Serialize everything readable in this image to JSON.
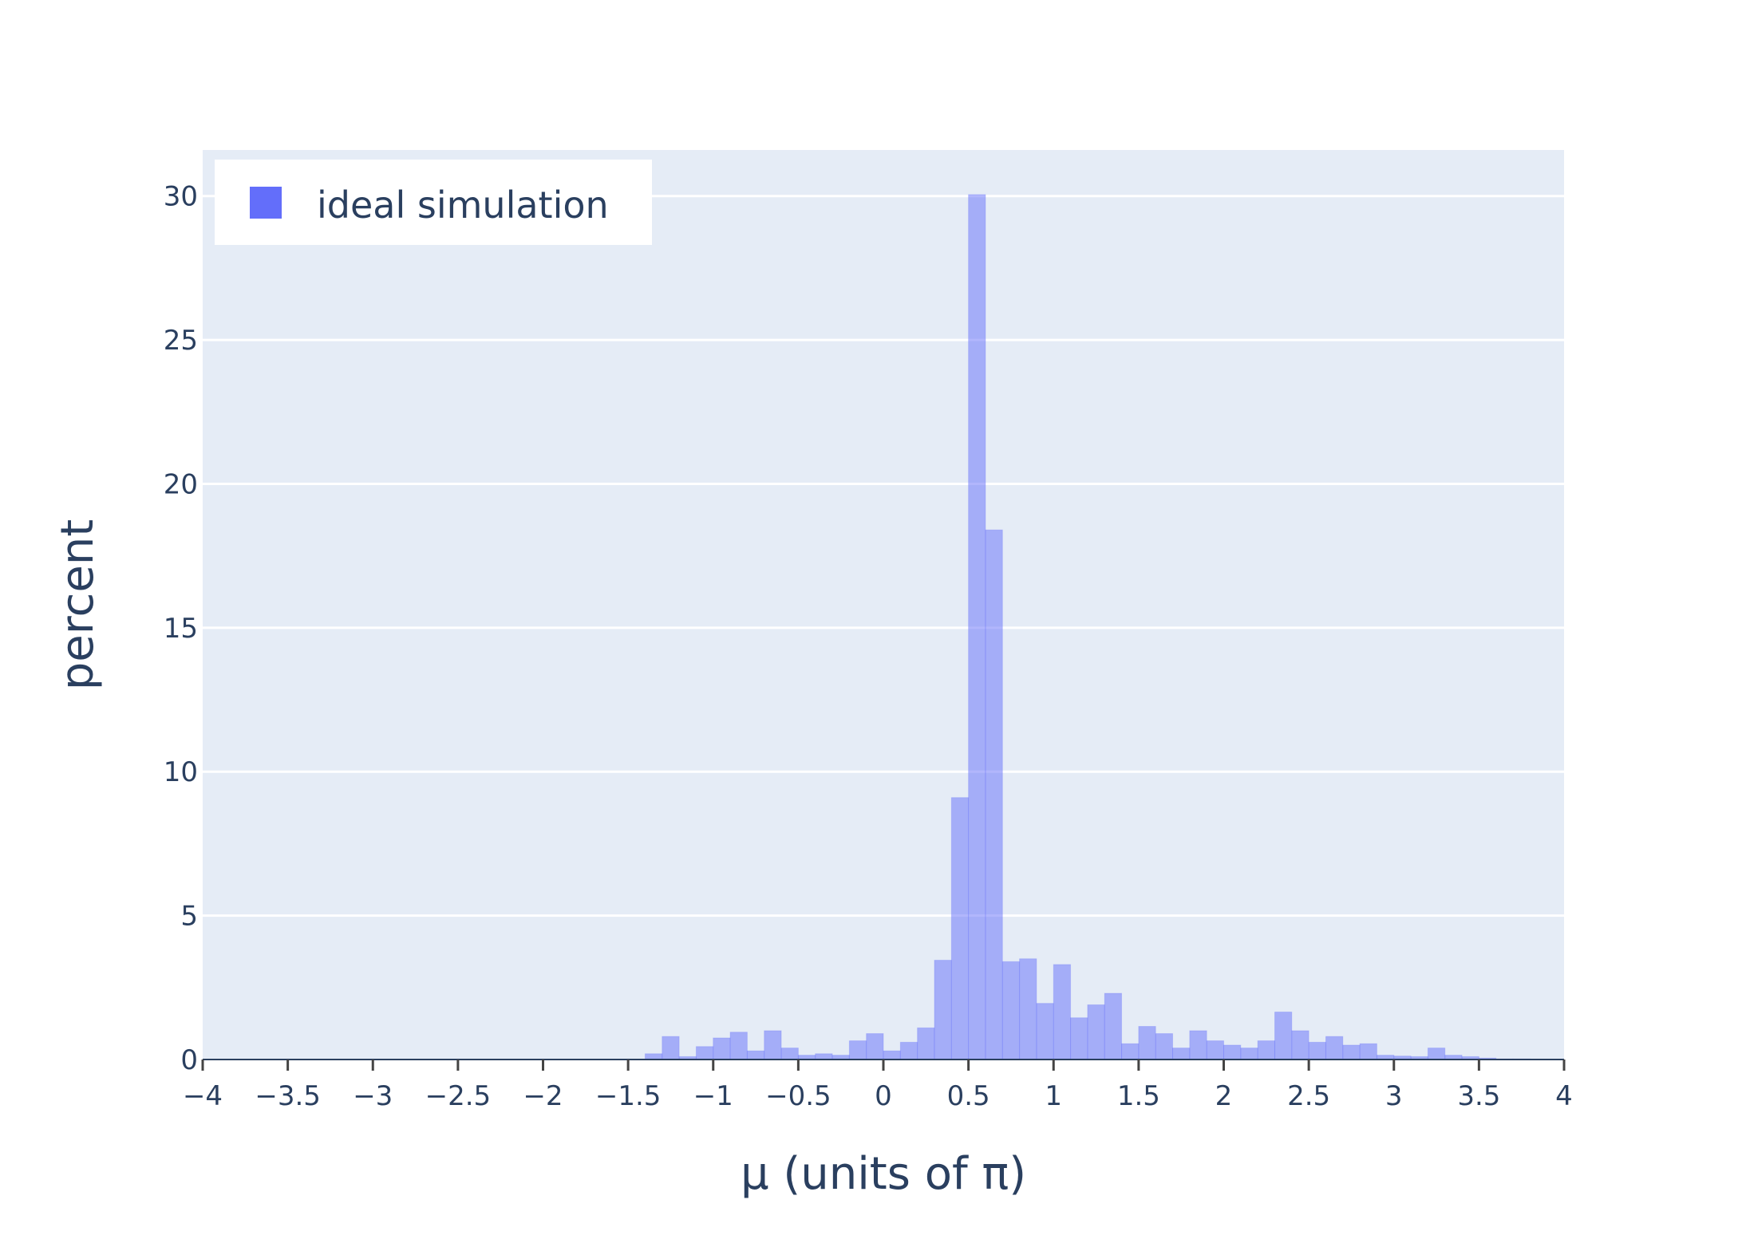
{
  "chart_data": {
    "type": "bar",
    "xlabel": "μ (units of π)",
    "ylabel": "percent",
    "xlim": [
      -4,
      4
    ],
    "ylim": [
      0,
      31.6
    ],
    "x_ticks": [
      -4,
      -3.5,
      -3,
      -2.5,
      -2,
      -1.5,
      -1,
      -0.5,
      0,
      0.5,
      1,
      1.5,
      2,
      2.5,
      3,
      3.5,
      4
    ],
    "x_tick_labels": [
      "−4",
      "−3.5",
      "−3",
      "−2.5",
      "−2",
      "−1.5",
      "−1",
      "−0.5",
      "0",
      "0.5",
      "1",
      "1.5",
      "2",
      "2.5",
      "3",
      "3.5",
      "4"
    ],
    "y_ticks": [
      0,
      5,
      10,
      15,
      20,
      25,
      30
    ],
    "y_tick_labels": [
      "0",
      "5",
      "10",
      "15",
      "20",
      "25",
      "30"
    ],
    "grid": true,
    "legend_position": "top-left",
    "bin_width": 0.1,
    "series": [
      {
        "name": "ideal simulation",
        "color": "#636efa",
        "bin_starts": [
          -1.4,
          -1.3,
          -1.2,
          -1.1,
          -1.0,
          -0.9,
          -0.8,
          -0.7,
          -0.6,
          -0.5,
          -0.4,
          -0.3,
          -0.2,
          -0.1,
          0.0,
          0.1,
          0.2,
          0.3,
          0.4,
          0.5,
          0.6,
          0.7,
          0.8,
          0.9,
          1.0,
          1.1,
          1.2,
          1.3,
          1.4,
          1.5,
          1.6,
          1.7,
          1.8,
          1.9,
          2.0,
          2.1,
          2.2,
          2.3,
          2.4,
          2.5,
          2.6,
          2.7,
          2.8,
          2.9,
          3.0,
          3.1,
          3.2,
          3.3,
          3.4,
          3.5,
          3.6,
          3.7
        ],
        "values": [
          0.2,
          0.8,
          0.1,
          0.45,
          0.75,
          0.95,
          0.3,
          1.0,
          0.4,
          0.15,
          0.2,
          0.15,
          0.65,
          0.9,
          0.3,
          0.6,
          1.1,
          3.45,
          9.1,
          30.05,
          18.4,
          3.4,
          3.5,
          1.95,
          3.3,
          1.45,
          1.9,
          2.3,
          0.55,
          1.15,
          0.9,
          0.4,
          1.0,
          0.65,
          0.5,
          0.4,
          0.65,
          1.65,
          1.0,
          0.6,
          0.8,
          0.5,
          0.55,
          0.15,
          0.12,
          0.1,
          0.4,
          0.15,
          0.1,
          0.05,
          0.02,
          0.02
        ]
      }
    ]
  }
}
